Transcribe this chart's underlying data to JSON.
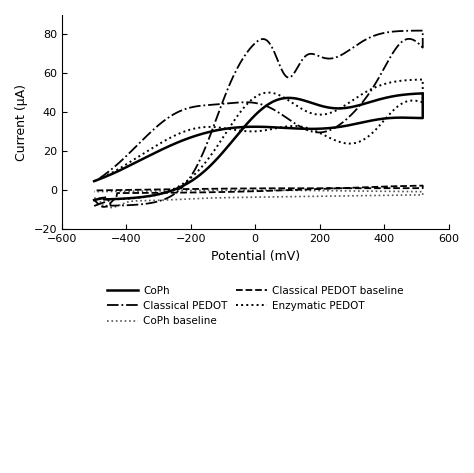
{
  "xlabel": "Potential (mV)",
  "ylabel": "Current (μA)",
  "xlim": [
    -600,
    600
  ],
  "ylim": [
    -20,
    90
  ],
  "yticks": [
    -20,
    0,
    20,
    40,
    60,
    80
  ],
  "xticks": [
    -600,
    -400,
    -200,
    0,
    200,
    400,
    600
  ],
  "background_color": "#ffffff",
  "legend": [
    {
      "label": "CoPh",
      "linestyle": "solid",
      "color": "#000000",
      "linewidth": 1.8
    },
    {
      "label": "Classical PEDOT",
      "linestyle": "dashdot",
      "color": "#000000",
      "linewidth": 1.3
    },
    {
      "label": "CoPh baseline",
      "linestyle": "dotted",
      "color": "#555555",
      "linewidth": 1.2
    },
    {
      "label": "Classical PEDOT baseline",
      "linestyle": "dashed",
      "color": "#000000",
      "linewidth": 1.3
    },
    {
      "label": "Enzymatic PEDOT",
      "linestyle": "dotted",
      "color": "#000000",
      "linewidth": 1.4
    }
  ]
}
